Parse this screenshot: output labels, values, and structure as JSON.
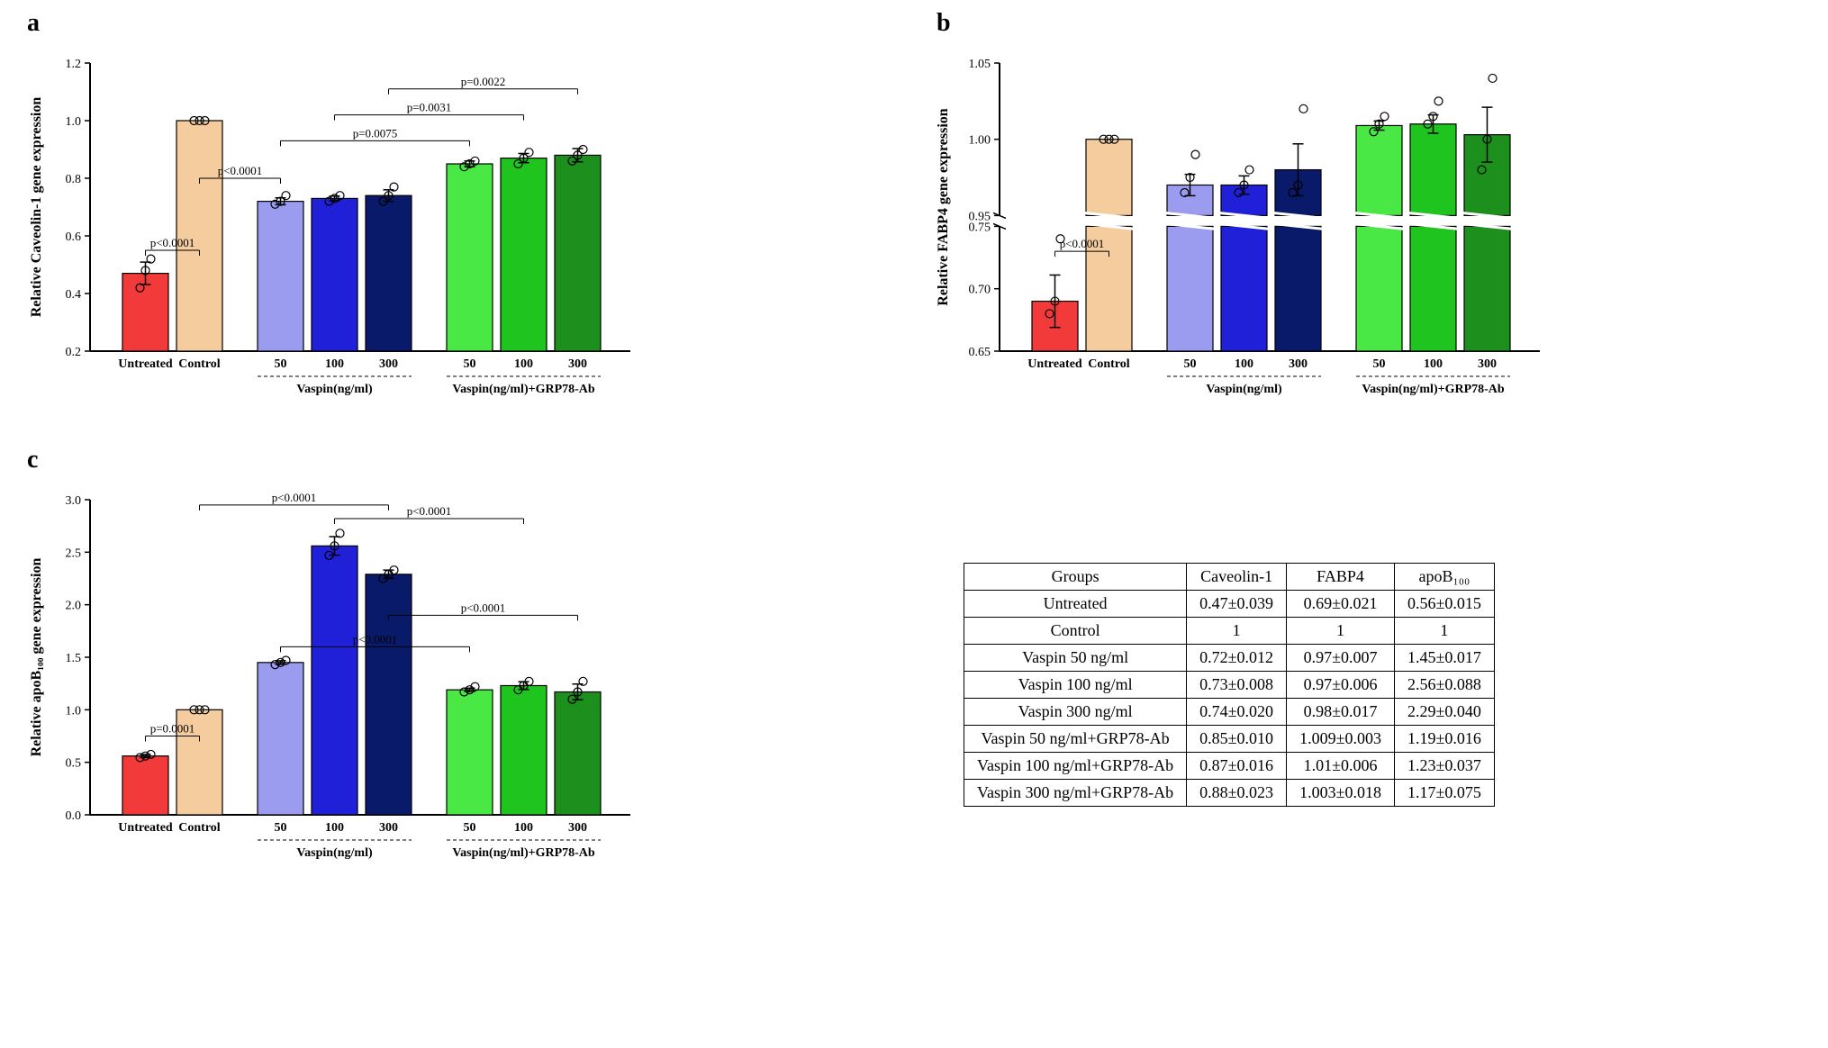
{
  "colors": {
    "untreated": "#f23a3a",
    "control": "#f5cc9e",
    "vaspin50": "#9b9bf0",
    "vaspin100": "#2020d8",
    "vaspin300": "#0a1a6b",
    "grp50": "#4ae845",
    "grp100": "#1fc41f",
    "grp300": "#1d8f1d",
    "axis": "#000000",
    "marker_stroke": "#000000",
    "marker_fill": "none",
    "error": "#000000"
  },
  "panel_a": {
    "label": "a",
    "ylabel": "Relative Caveolin-1 gene expression",
    "ylim": [
      0.2,
      1.2
    ],
    "yticks": [
      0.2,
      0.4,
      0.6,
      0.8,
      1.0,
      1.2
    ],
    "bars": [
      {
        "key": "Untreated",
        "mean": 0.47,
        "err": 0.039,
        "points": [
          0.42,
          0.48,
          0.52
        ],
        "color": "untreated"
      },
      {
        "key": "Control",
        "mean": 1.0,
        "err": 0,
        "points": [
          1.0,
          1.0,
          1.0
        ],
        "color": "control"
      },
      {
        "key": "50",
        "mean": 0.72,
        "err": 0.012,
        "points": [
          0.71,
          0.72,
          0.74
        ],
        "color": "vaspin50"
      },
      {
        "key": "100",
        "mean": 0.73,
        "err": 0.008,
        "points": [
          0.72,
          0.73,
          0.74
        ],
        "color": "vaspin100"
      },
      {
        "key": "300",
        "mean": 0.74,
        "err": 0.02,
        "points": [
          0.72,
          0.74,
          0.77
        ],
        "color": "vaspin300"
      },
      {
        "key": "50",
        "mean": 0.85,
        "err": 0.01,
        "points": [
          0.84,
          0.85,
          0.86
        ],
        "color": "grp50"
      },
      {
        "key": "100",
        "mean": 0.87,
        "err": 0.016,
        "points": [
          0.85,
          0.87,
          0.89
        ],
        "color": "grp100"
      },
      {
        "key": "300",
        "mean": 0.88,
        "err": 0.023,
        "points": [
          0.86,
          0.88,
          0.9
        ],
        "color": "grp300"
      }
    ],
    "pvalues": [
      {
        "from": 0,
        "to": 1,
        "y": 0.55,
        "text": "p<0.0001"
      },
      {
        "from": 1,
        "to": 2,
        "y": 0.8,
        "text": "p<0.0001"
      },
      {
        "from": 2,
        "to": 5,
        "y": 0.93,
        "text": "p=0.0075"
      },
      {
        "from": 3,
        "to": 6,
        "y": 1.02,
        "text": "p=0.0031"
      },
      {
        "from": 4,
        "to": 7,
        "y": 1.11,
        "text": "p=0.0022"
      }
    ],
    "groups": [
      {
        "label": "Vaspin(ng/ml)",
        "from": 2,
        "to": 4
      },
      {
        "label": "Vaspin(ng/ml)+GRP78-Ab",
        "from": 5,
        "to": 7
      }
    ]
  },
  "panel_b": {
    "label": "b",
    "ylabel": "Relative FABP4 gene expression",
    "break_low": [
      0.65,
      0.75
    ],
    "break_high": [
      0.95,
      1.05
    ],
    "yticks_low": [
      0.65,
      0.7,
      0.75
    ],
    "yticks_high": [
      0.95,
      1.0,
      1.05
    ],
    "bars": [
      {
        "key": "Untreated",
        "mean": 0.69,
        "err": 0.021,
        "points": [
          0.68,
          0.69,
          0.74
        ],
        "color": "untreated"
      },
      {
        "key": "Control",
        "mean": 1.0,
        "err": 0,
        "points": [
          1.0,
          1.0,
          1.0
        ],
        "color": "control"
      },
      {
        "key": "50",
        "mean": 0.97,
        "err": 0.007,
        "points": [
          0.965,
          0.975,
          0.99
        ],
        "color": "vaspin50"
      },
      {
        "key": "100",
        "mean": 0.97,
        "err": 0.006,
        "points": [
          0.965,
          0.97,
          0.98
        ],
        "color": "vaspin100"
      },
      {
        "key": "300",
        "mean": 0.98,
        "err": 0.017,
        "points": [
          0.965,
          0.97,
          1.02
        ],
        "color": "vaspin300"
      },
      {
        "key": "50",
        "mean": 1.009,
        "err": 0.003,
        "points": [
          1.005,
          1.01,
          1.015
        ],
        "color": "grp50"
      },
      {
        "key": "100",
        "mean": 1.01,
        "err": 0.006,
        "points": [
          1.01,
          1.015,
          1.025
        ],
        "color": "grp100"
      },
      {
        "key": "300",
        "mean": 1.003,
        "err": 0.018,
        "points": [
          0.98,
          1.0,
          1.04
        ],
        "color": "grp300"
      }
    ],
    "pvalues": [
      {
        "from": 0,
        "to": 1,
        "y_region": "low",
        "y": 0.73,
        "text": "p<0.0001"
      }
    ],
    "groups": [
      {
        "label": "Vaspin(ng/ml)",
        "from": 2,
        "to": 4
      },
      {
        "label": "Vaspin(ng/ml)+GRP78-Ab",
        "from": 5,
        "to": 7
      }
    ]
  },
  "panel_c": {
    "label": "c",
    "ylabel": "Relative apoB₁₀₀ gene expression",
    "ylim": [
      0.0,
      3.0
    ],
    "yticks": [
      0.0,
      0.5,
      1.0,
      1.5,
      2.0,
      2.5,
      3.0
    ],
    "bars": [
      {
        "key": "Untreated",
        "mean": 0.56,
        "err": 0.015,
        "points": [
          0.545,
          0.56,
          0.575
        ],
        "color": "untreated"
      },
      {
        "key": "Control",
        "mean": 1.0,
        "err": 0,
        "points": [
          1.0,
          1.0,
          1.0
        ],
        "color": "control"
      },
      {
        "key": "50",
        "mean": 1.45,
        "err": 0.017,
        "points": [
          1.43,
          1.45,
          1.47
        ],
        "color": "vaspin50"
      },
      {
        "key": "100",
        "mean": 2.56,
        "err": 0.088,
        "points": [
          2.47,
          2.56,
          2.68
        ],
        "color": "vaspin100"
      },
      {
        "key": "300",
        "mean": 2.29,
        "err": 0.04,
        "points": [
          2.25,
          2.29,
          2.33
        ],
        "color": "vaspin300"
      },
      {
        "key": "50",
        "mean": 1.19,
        "err": 0.016,
        "points": [
          1.17,
          1.19,
          1.22
        ],
        "color": "grp50"
      },
      {
        "key": "100",
        "mean": 1.23,
        "err": 0.037,
        "points": [
          1.19,
          1.23,
          1.27
        ],
        "color": "grp100"
      },
      {
        "key": "300",
        "mean": 1.17,
        "err": 0.075,
        "points": [
          1.1,
          1.17,
          1.27
        ],
        "color": "grp300"
      }
    ],
    "pvalues": [
      {
        "from": 0,
        "to": 1,
        "y": 0.75,
        "text": "p=0.0001"
      },
      {
        "from": 2,
        "to": 5,
        "y": 1.6,
        "text": "p<0.0001"
      },
      {
        "from": 3,
        "to": 6,
        "y": 2.82,
        "text": "p<0.0001"
      },
      {
        "from": 1,
        "to": 4,
        "y": 2.95,
        "text": "p<0.0001"
      },
      {
        "from": 4,
        "to": 7,
        "y": 1.9,
        "text": "p<0.0001"
      }
    ],
    "groups": [
      {
        "label": "Vaspin(ng/ml)",
        "from": 2,
        "to": 4
      },
      {
        "label": "Vaspin(ng/ml)+GRP78-Ab",
        "from": 5,
        "to": 7
      }
    ]
  },
  "table": {
    "headers": [
      "Groups",
      "Caveolin-1",
      "FABP4",
      "apoB₁₀₀"
    ],
    "rows": [
      [
        "Untreated",
        "0.47±0.039",
        "0.69±0.021",
        "0.56±0.015"
      ],
      [
        "Control",
        "1",
        "1",
        "1"
      ],
      [
        "Vaspin 50 ng/ml",
        "0.72±0.012",
        "0.97±0.007",
        "1.45±0.017"
      ],
      [
        "Vaspin 100 ng/ml",
        "0.73±0.008",
        "0.97±0.006",
        "2.56±0.088"
      ],
      [
        "Vaspin 300 ng/ml",
        "0.74±0.020",
        "0.98±0.017",
        "2.29±0.040"
      ],
      [
        "Vaspin 50 ng/ml+GRP78-Ab",
        "0.85±0.010",
        "1.009±0.003",
        "1.19±0.016"
      ],
      [
        "Vaspin 100 ng/ml+GRP78-Ab",
        "0.87±0.016",
        "1.01±0.006",
        "1.23±0.037"
      ],
      [
        "Vaspin 300 ng/ml+GRP78-Ab",
        "0.88±0.023",
        "1.003±0.018",
        "1.17±0.075"
      ]
    ]
  }
}
